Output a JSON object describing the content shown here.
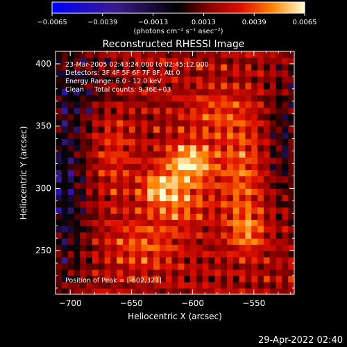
{
  "chart_data": {
    "type": "heatmap",
    "title": "Reconstructed RHESSI Image",
    "xlabel": "Heliocentric X (arcsec)",
    "ylabel": "Heliocentric Y (arcsec)",
    "xlim": [
      -712,
      -517
    ],
    "ylim": [
      215,
      410
    ],
    "xticks": [
      -700,
      -650,
      -600,
      -550
    ],
    "yticks": [
      250,
      300,
      350,
      400
    ],
    "xtick_labels": [
      "−700",
      "−650",
      "−600",
      "−550"
    ],
    "ytick_labels": [
      "250",
      "300",
      "350",
      "400"
    ],
    "colorbar": {
      "min": -0.0065,
      "max": 0.0065,
      "ticks": [
        -0.0065,
        -0.0039,
        -0.0013,
        0.0013,
        0.0039,
        0.0065
      ],
      "tick_labels": [
        "−0.0065",
        "−0.0039",
        "−0.0013",
        "0.0013",
        "0.0039",
        "0.0065"
      ],
      "units_label": "(photons cm⁻² s⁻¹ asec⁻²)"
    },
    "annotations": [
      "23-Mar-2005 02:43:24.000 to 02:45:12.000",
      "Detectors: 3F 4F 5F 6F 7F 8F, Att 0",
      "Energy Range: 6.0 - 12.0 keV",
      "Clean     Total counts: 9.36E+03"
    ],
    "peak_label": "Position of Peak = [-602,321]",
    "peak": [
      -602,
      321
    ],
    "peak_value": 0.0065,
    "grid": false
  },
  "footer": {
    "date": "29-Apr-2022 02:40"
  }
}
